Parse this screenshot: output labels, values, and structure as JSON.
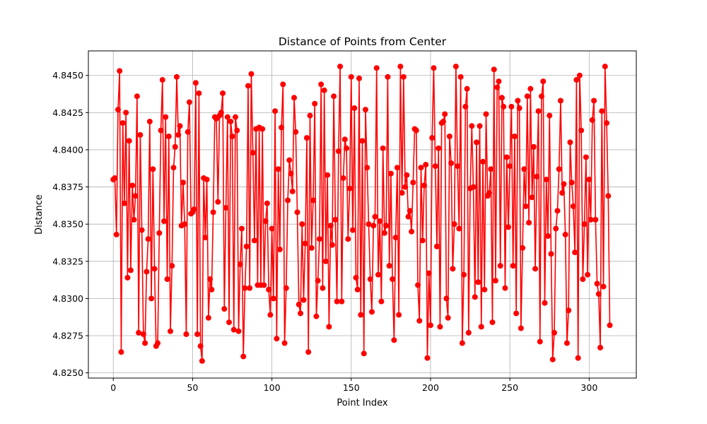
{
  "chart_data": {
    "type": "line",
    "title": "Distance of Points from Center",
    "xlabel": "Point Index",
    "ylabel": "Distance",
    "xlim": [
      -15.7,
      329.7
    ],
    "ylim": [
      4.82465,
      4.84665
    ],
    "grid": true,
    "xticks": [
      0,
      50,
      100,
      150,
      200,
      250,
      300
    ],
    "yticks": [
      4.825,
      4.8275,
      4.83,
      4.8325,
      4.835,
      4.8375,
      4.84,
      4.8425,
      4.845
    ],
    "ytick_labels": [
      "4.8250",
      "4.8275",
      "4.8300",
      "4.8325",
      "4.8350",
      "4.8375",
      "4.8400",
      "4.8425",
      "4.8450"
    ],
    "series": [
      {
        "color": "#ff0000",
        "marker": "circle",
        "x_start": 0,
        "values": [
          4.838,
          4.8381,
          4.8343,
          4.8427,
          4.8453,
          4.8264,
          4.8418,
          4.8364,
          4.8425,
          4.8314,
          4.8406,
          4.8319,
          4.8376,
          4.8353,
          4.8369,
          4.8436,
          4.8277,
          4.841,
          4.8346,
          4.8276,
          4.827,
          4.8318,
          4.834,
          4.8419,
          4.83,
          4.8387,
          4.832,
          4.8268,
          4.827,
          4.8344,
          4.8413,
          4.8447,
          4.8352,
          4.8422,
          4.8313,
          4.8409,
          4.8278,
          4.8322,
          4.8388,
          4.8402,
          4.8449,
          4.841,
          4.8416,
          4.8349,
          4.8378,
          4.835,
          4.8276,
          4.8412,
          4.8432,
          4.8357,
          4.8358,
          4.836,
          4.8445,
          4.8276,
          4.8438,
          4.8268,
          4.8258,
          4.8381,
          4.8341,
          4.838,
          4.8287,
          4.8313,
          4.8306,
          4.8358,
          4.8422,
          4.8421,
          4.8365,
          4.8423,
          4.8425,
          4.8438,
          4.8293,
          4.8361,
          4.8422,
          4.8284,
          4.8419,
          4.8409,
          4.8279,
          4.8422,
          4.8413,
          4.8278,
          4.8323,
          4.8347,
          4.8261,
          4.8307,
          4.8335,
          4.8443,
          4.8307,
          4.8451,
          4.8398,
          4.8339,
          4.8414,
          4.8309,
          4.8415,
          4.8309,
          4.8414,
          4.8309,
          4.8352,
          4.8364,
          4.8306,
          4.8289,
          4.8347,
          4.83,
          4.8426,
          4.8273,
          4.8387,
          4.8333,
          4.8415,
          4.8444,
          4.827,
          4.8307,
          4.8366,
          4.8393,
          4.8384,
          4.8372,
          4.8435,
          4.8412,
          4.8358,
          4.8296,
          4.829,
          4.835,
          4.8299,
          4.8337,
          4.8408,
          4.8264,
          4.8423,
          4.8334,
          4.8366,
          4.8431,
          4.8288,
          4.8312,
          4.834,
          4.8444,
          4.8307,
          4.844,
          4.8325,
          4.8383,
          4.8281,
          4.8349,
          4.8336,
          4.8436,
          4.8353,
          4.8298,
          4.8399,
          4.8456,
          4.8298,
          4.8381,
          4.8407,
          4.8401,
          4.834,
          4.8374,
          4.8449,
          4.8346,
          4.8428,
          4.8314,
          4.8306,
          4.8448,
          4.8289,
          4.8406,
          4.8263,
          4.8427,
          4.8388,
          4.835,
          4.8313,
          4.8291,
          4.8349,
          4.8355,
          4.8455,
          4.8316,
          4.8352,
          4.8298,
          4.8401,
          4.8344,
          4.8349,
          4.8449,
          4.8322,
          4.8384,
          4.8313,
          4.8272,
          4.8341,
          4.8388,
          4.8289,
          4.8456,
          4.8371,
          4.8449,
          4.8375,
          4.8383,
          4.8355,
          4.8359,
          4.8345,
          4.8378,
          4.8414,
          4.8413,
          4.8309,
          4.8285,
          4.8388,
          4.8339,
          4.8376,
          4.839,
          4.826,
          4.8317,
          4.8282,
          4.8408,
          4.8455,
          4.8389,
          4.8335,
          4.8401,
          4.8281,
          4.8418,
          4.8419,
          4.8424,
          4.83,
          4.8287,
          4.8409,
          4.8391,
          4.832,
          4.835,
          4.8456,
          4.8389,
          4.8347,
          4.8449,
          4.827,
          4.8316,
          4.8429,
          4.8441,
          4.8277,
          4.8374,
          4.8416,
          4.8375,
          4.8301,
          4.8405,
          4.8311,
          4.8416,
          4.8281,
          4.8392,
          4.8306,
          4.8424,
          4.8369,
          4.8371,
          4.8387,
          4.8284,
          4.8454,
          4.8312,
          4.8442,
          4.8446,
          4.8322,
          4.8435,
          4.8429,
          4.8307,
          4.8395,
          4.8348,
          4.8389,
          4.8429,
          4.8322,
          4.8409,
          4.829,
          4.8433,
          4.8428,
          4.828,
          4.8334,
          4.8387,
          4.8362,
          4.8436,
          4.8351,
          4.8441,
          4.8368,
          4.8402,
          4.832,
          4.8382,
          4.8426,
          4.8271,
          4.8436,
          4.8446,
          4.8297,
          4.838,
          4.8342,
          4.8423,
          4.833,
          4.8259,
          4.8277,
          4.8347,
          4.8359,
          4.8387,
          4.8433,
          4.8371,
          4.8377,
          4.8343,
          4.827,
          4.8292,
          4.8405,
          4.8378,
          4.8362,
          4.8331,
          4.8447,
          4.826,
          4.845,
          4.8413,
          4.8313,
          4.835,
          4.8395,
          4.8316,
          4.838,
          4.8353,
          4.842,
          4.8433,
          4.8353,
          4.831,
          4.8303,
          4.8267,
          4.8426,
          4.8308,
          4.8456,
          4.8418,
          4.8369,
          4.8282
        ]
      }
    ]
  }
}
